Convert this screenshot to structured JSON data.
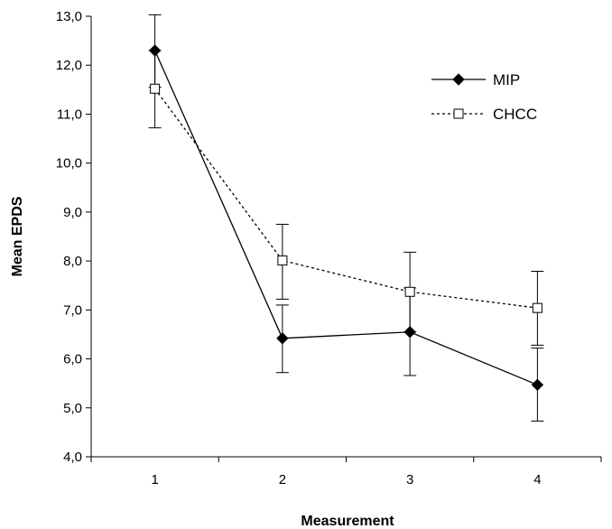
{
  "chart_data": {
    "type": "line",
    "title": "",
    "xlabel": "Measurement",
    "ylabel": "Mean EPDS",
    "categories": [
      "1",
      "2",
      "3",
      "4"
    ],
    "ylim": [
      4.0,
      13.0
    ],
    "yticks": [
      "4,0",
      "5,0",
      "6,0",
      "7,0",
      "8,0",
      "9,0",
      "10,0",
      "11,0",
      "12,0",
      "13,0"
    ],
    "grid": false,
    "legend_position": "top-right",
    "series": [
      {
        "name": "MIP",
        "style": "solid",
        "marker": "filled-diamond",
        "color": "#000000",
        "values": [
          12.3,
          6.42,
          6.55,
          5.47
        ],
        "error_low": [
          11.55,
          5.72,
          5.66,
          4.73
        ],
        "error_high": [
          13.03,
          7.1,
          7.45,
          6.22
        ]
      },
      {
        "name": "CHCC",
        "style": "dotted",
        "marker": "open-square",
        "color": "#000000",
        "values": [
          11.52,
          8.01,
          7.37,
          7.04
        ],
        "error_low": [
          10.72,
          7.22,
          6.55,
          6.28
        ],
        "error_high": [
          12.3,
          8.75,
          8.18,
          7.79
        ]
      }
    ]
  }
}
